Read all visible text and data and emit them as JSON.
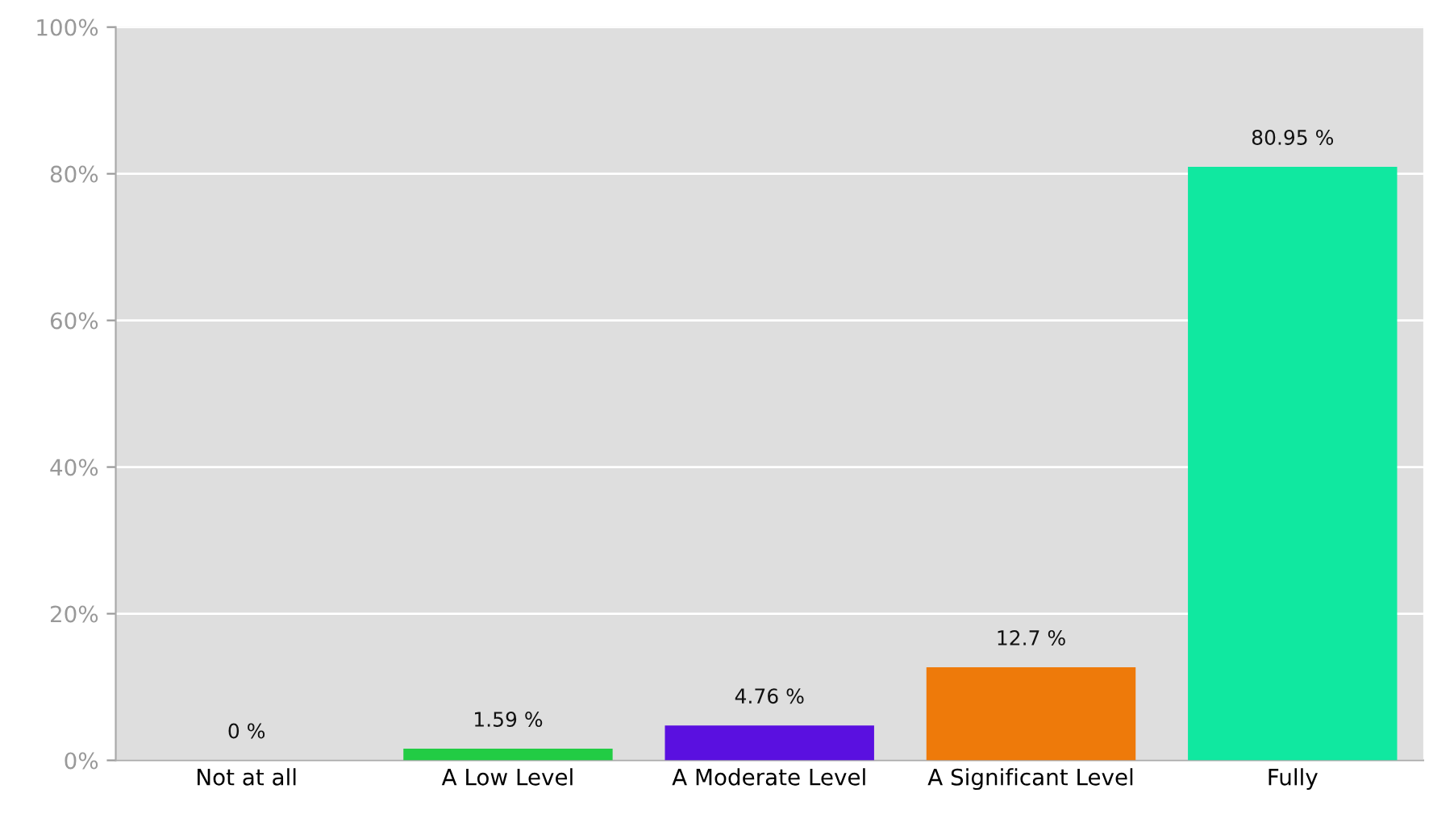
{
  "chart_data": {
    "type": "bar",
    "categories": [
      "Not at all",
      "A Low Level",
      "A Moderate Level",
      "A Significant Level",
      "Fully"
    ],
    "values": [
      0,
      1.59,
      4.76,
      12.7,
      80.95
    ],
    "colors": [
      "#22cc44",
      "#22cc44",
      "#5a10e0",
      "#ee7a0a",
      "#10e8a0"
    ],
    "value_labels": [
      "0 %",
      "1.59 %",
      "4.76 %",
      "12.7 %",
      "80.95 %"
    ],
    "ylim": [
      0,
      100
    ],
    "yticks": [
      {
        "value": 0,
        "label": "0%"
      },
      {
        "value": 20,
        "label": "20%"
      },
      {
        "value": 40,
        "label": "40%"
      },
      {
        "value": 60,
        "label": "60%"
      },
      {
        "value": 80,
        "label": "80%"
      },
      {
        "value": 100,
        "label": "100%"
      }
    ],
    "grid": "y"
  }
}
